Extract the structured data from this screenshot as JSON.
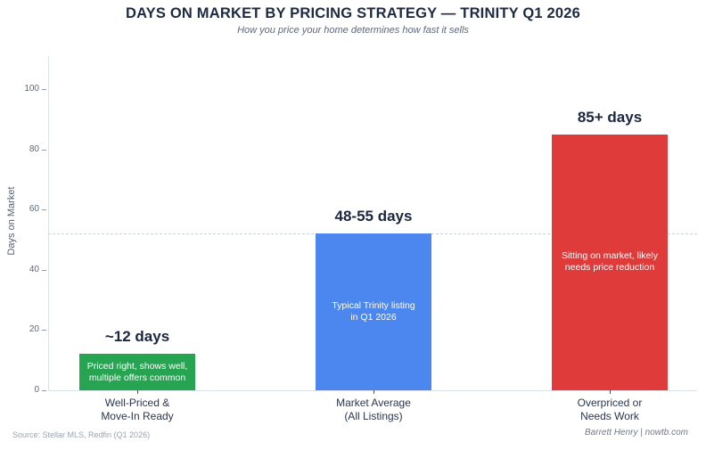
{
  "header": {
    "title": "DAYS ON MARKET BY PRICING STRATEGY — TRINITY Q1 2026",
    "subtitle": "How you price your home determines how fast it sells"
  },
  "chart_data": {
    "type": "bar",
    "title": "DAYS ON MARKET BY PRICING STRATEGY — TRINITY Q1 2026",
    "subtitle": "How you price your home determines how fast it sells",
    "xlabel": "",
    "ylabel": "Days on Market",
    "ylim": [
      0,
      111
    ],
    "yticks": [
      0,
      20,
      40,
      60,
      80,
      100
    ],
    "grid": false,
    "legend": "none",
    "reference_line": {
      "value": 52,
      "style": "dashed",
      "color": "#ccd2dc"
    },
    "categories": [
      "Well-Priced & Move-In Ready",
      "Market Average (All Listings)",
      "Overpriced or Needs Work"
    ],
    "values": [
      12,
      52,
      85
    ],
    "bars": [
      {
        "category_lines": [
          "Well-Priced &",
          "Move-In Ready"
        ],
        "value": 12,
        "value_label": "~12 days",
        "annotation_lines": [
          "Priced right, shows well,",
          "multiple offers common"
        ],
        "color": "#27a452"
      },
      {
        "category_lines": [
          "Market Average",
          "(All Listings)"
        ],
        "value": 52,
        "value_label": "48-55 days",
        "annotation_lines": [
          "Typical Trinity listing",
          "in Q1 2026"
        ],
        "color": "#4c87ef"
      },
      {
        "category_lines": [
          "Overpriced or",
          "Needs Work"
        ],
        "value": 85,
        "value_label": "85+ days",
        "annotation_lines": [
          "Sitting on market, likely",
          "needs price reduction"
        ],
        "color": "#df3b3b"
      }
    ]
  },
  "footer": {
    "source": "Source: Stellar MLS, Redfin (Q1 2026)",
    "credit": "Barrett Henry | nowtb.com"
  }
}
